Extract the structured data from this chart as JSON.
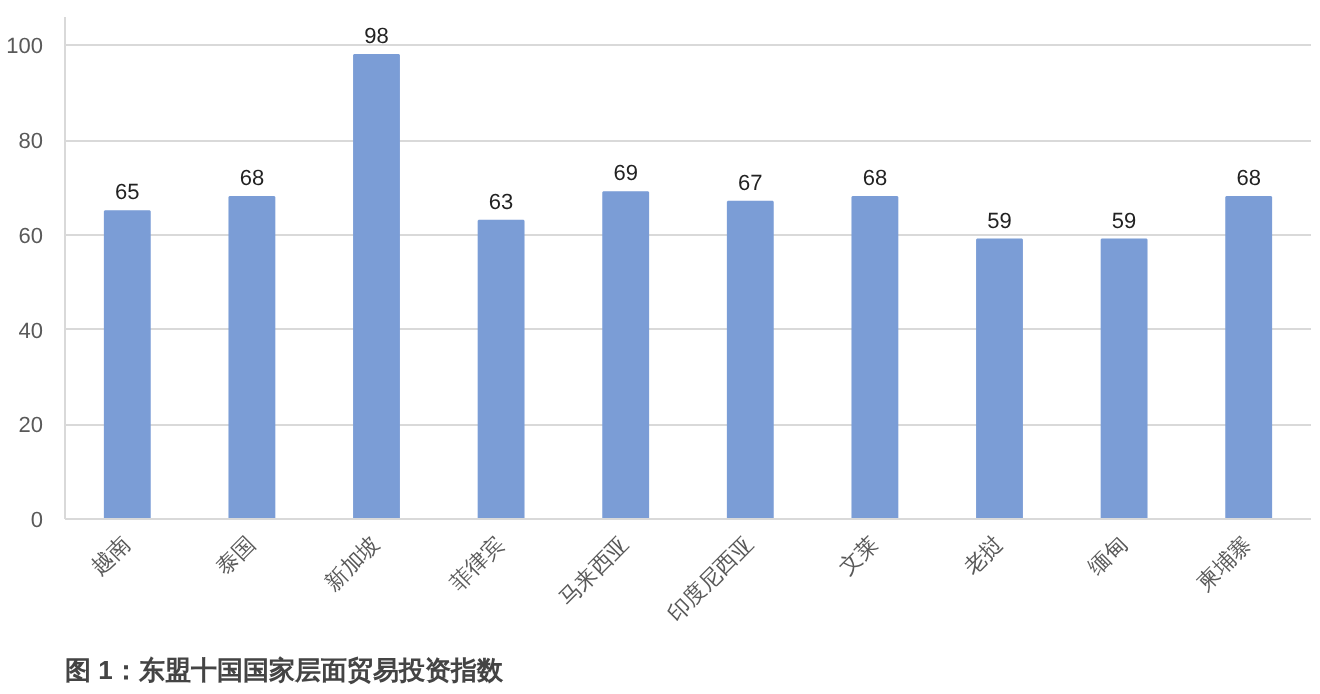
{
  "chart_data": {
    "type": "bar",
    "categories": [
      "越南",
      "泰国",
      "新加坡",
      "菲律宾",
      "马来西亚",
      "印度尼西亚",
      "文莱",
      "老挝",
      "缅甸",
      "柬埔寨"
    ],
    "values": [
      65,
      68,
      98,
      63,
      69,
      67,
      68,
      59,
      59,
      68
    ],
    "color": "#7b9dd6",
    "data_labels": true,
    "ylim": [
      0,
      106
    ],
    "yticks": [
      0,
      20,
      40,
      60,
      80,
      100
    ],
    "grid": "y",
    "annotations": [
      "图 1：东盟十国国家层面贸易投资指数"
    ]
  }
}
